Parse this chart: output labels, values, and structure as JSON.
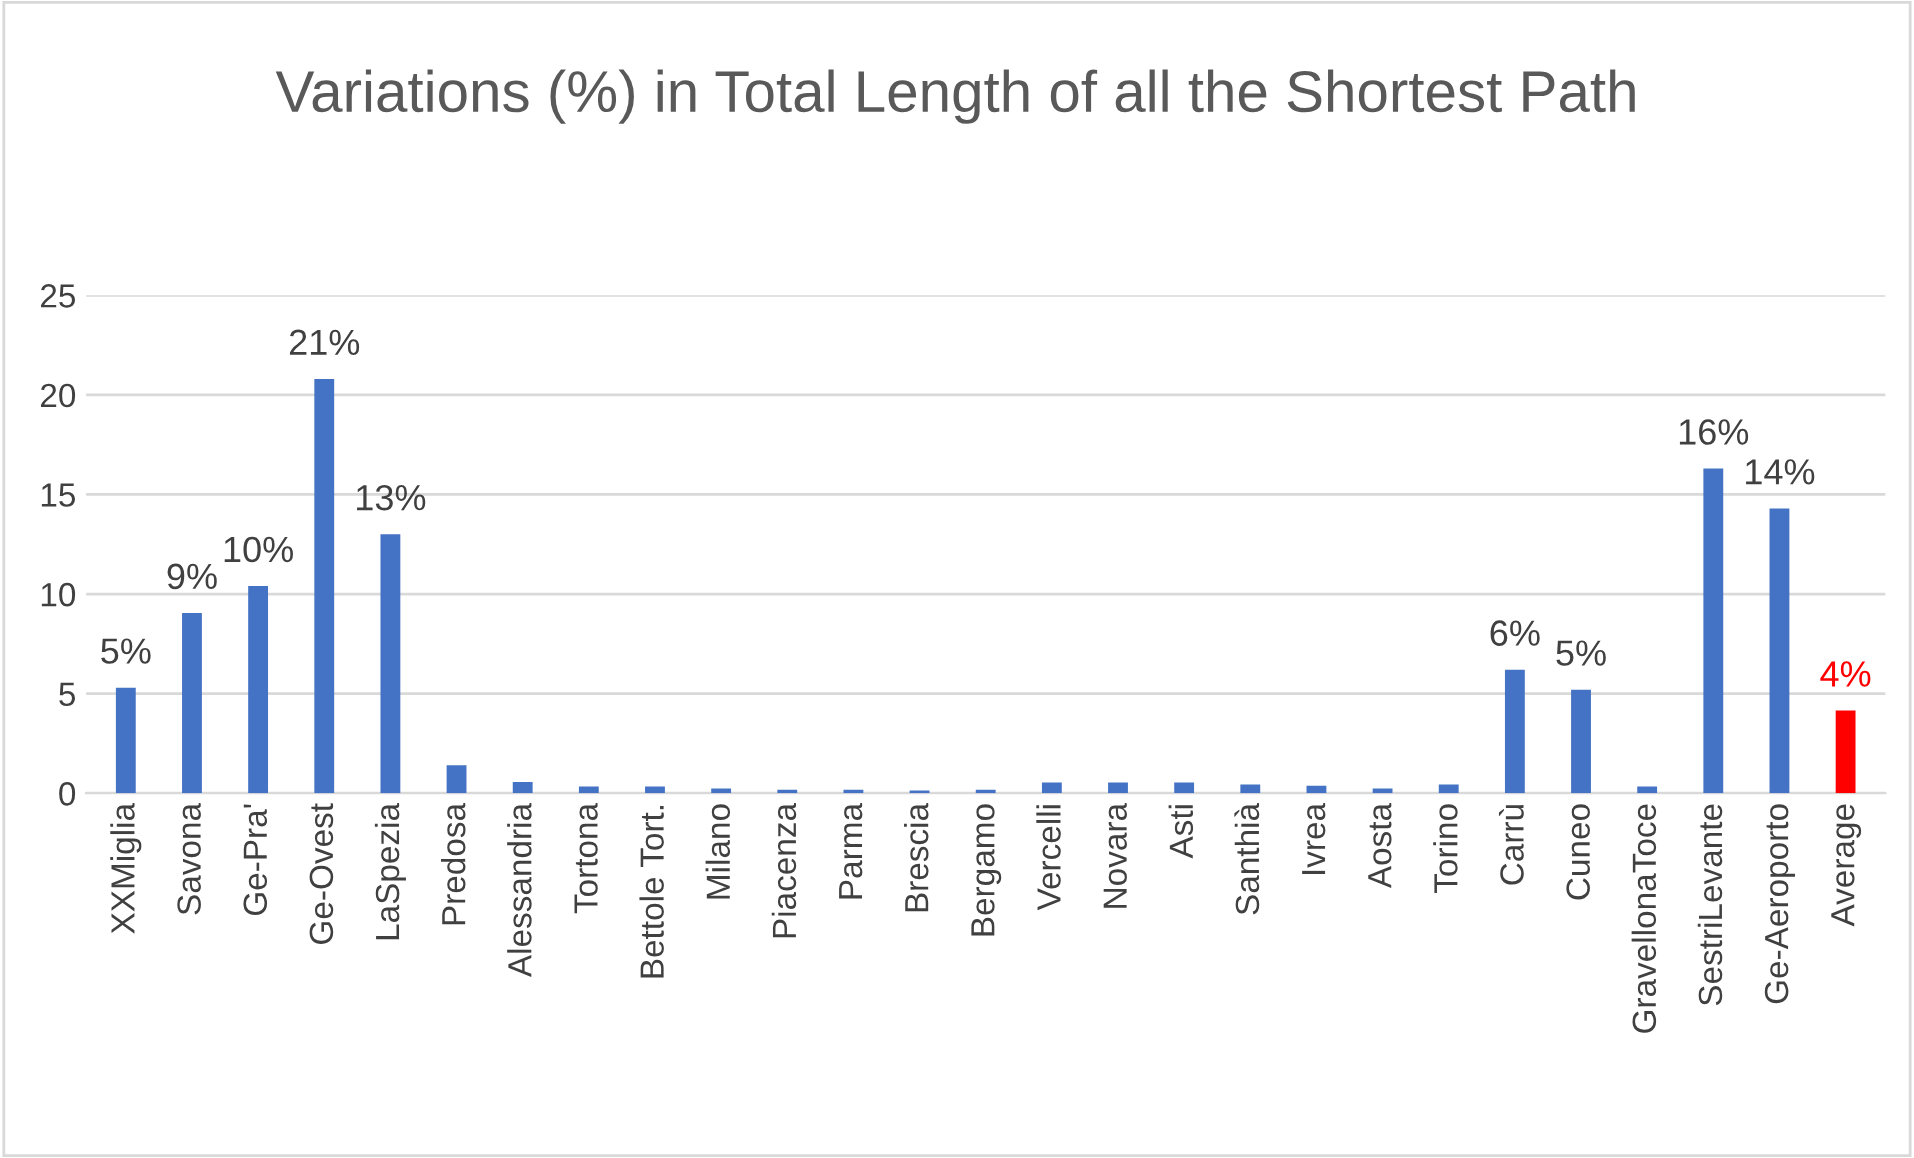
{
  "chart_data": {
    "type": "bar",
    "title": "Variations (%) in Total Length of all the Shortest Path",
    "categories": [
      "XXMiglia",
      "Savona",
      "Ge-Pra'",
      "Ge-Ovest",
      "LaSpezia",
      "Predosa",
      "Alessandria",
      "Tortona",
      "Bettole Tort.",
      "Milano",
      "Piacenza",
      "Parma",
      "Brescia",
      "Bergamo",
      "Vercelli",
      "Novara",
      "Asti",
      "Santhià",
      "Ivrea",
      "Aosta",
      "Torino",
      "Carrù",
      "Cuneo",
      "GravellonaToce",
      "SestriLevante",
      "Ge-Aeroporto",
      "Average"
    ],
    "values": [
      5.3,
      9.05,
      10.4,
      20.8,
      13.0,
      1.4,
      0.57,
      0.34,
      0.34,
      0.24,
      0.17,
      0.17,
      0.14,
      0.17,
      0.54,
      0.54,
      0.54,
      0.44,
      0.37,
      0.24,
      0.44,
      6.2,
      5.2,
      0.34,
      16.3,
      14.3,
      4.15
    ],
    "colors": [
      "#4472c4",
      "#4472c4",
      "#4472c4",
      "#4472c4",
      "#4472c4",
      "#4472c4",
      "#4472c4",
      "#4472c4",
      "#4472c4",
      "#4472c4",
      "#4472c4",
      "#4472c4",
      "#4472c4",
      "#4472c4",
      "#4472c4",
      "#4472c4",
      "#4472c4",
      "#4472c4",
      "#4472c4",
      "#4472c4",
      "#4472c4",
      "#4472c4",
      "#4472c4",
      "#4472c4",
      "#4472c4",
      "#4472c4",
      "#ff0000"
    ],
    "value_labels": [
      "5%",
      "9%",
      "10%",
      "21%",
      "13%",
      null,
      null,
      null,
      null,
      null,
      null,
      null,
      null,
      null,
      null,
      null,
      null,
      null,
      null,
      null,
      null,
      "6%",
      "5%",
      null,
      "16%",
      "14%",
      "4%"
    ],
    "ylim": [
      0,
      25
    ],
    "yticks": [
      0,
      5,
      10,
      15,
      20,
      25
    ],
    "grid": "y",
    "legend": false
  }
}
